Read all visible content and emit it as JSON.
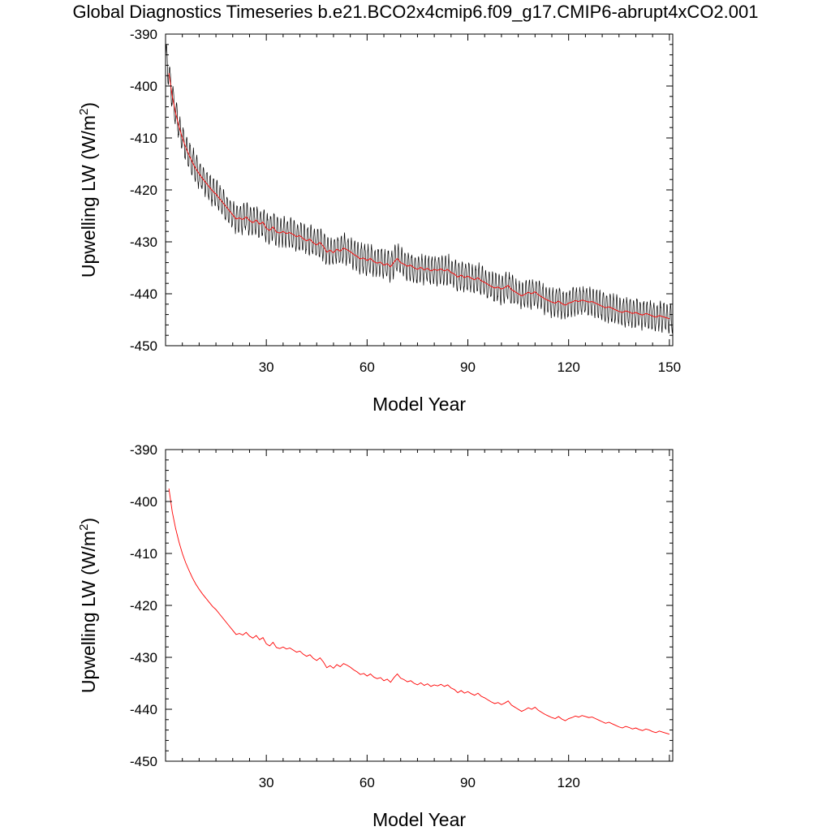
{
  "title": "Global Diagnostics Timeseries b.e21.BCO2x4cmip6.f09_g17.CMIP6-abrupt4xCO2.001",
  "colors": {
    "monthly": "#000000",
    "annual": "#ff0000",
    "axis": "#000000"
  },
  "chart_data": [
    {
      "type": "line",
      "xlabel": "Model Year",
      "ylabel_main": "Upwelling LW (W/m",
      "ylabel_sup": "2",
      "ylabel_close": ")",
      "xlim": [
        0,
        151
      ],
      "ylim": [
        -450,
        -390
      ],
      "xticks": [
        30,
        60,
        90,
        120,
        150
      ],
      "xtick_labels": [
        "30",
        "60",
        "90",
        "120",
        "150"
      ],
      "yticks": [
        -390,
        -400,
        -410,
        -420,
        -430,
        -440,
        -450
      ],
      "ytick_labels": [
        "-390",
        "-400",
        "-410",
        "-420",
        "-430",
        "-440",
        "-450"
      ],
      "series": [
        {
          "kind": "monthly",
          "x_start": 0.04,
          "x_end": 151,
          "count": 1812,
          "seasonal_amplitude": 2.6
        },
        {
          "kind": "annual"
        }
      ]
    },
    {
      "type": "line",
      "xlabel": "Model Year",
      "ylabel_main": "Upwelling LW (W/m",
      "ylabel_sup": "2",
      "ylabel_close": ")",
      "xlim": [
        0,
        151
      ],
      "ylim": [
        -450,
        -390
      ],
      "xticks": [
        30,
        60,
        90,
        120
      ],
      "xtick_labels": [
        "30",
        "60",
        "90",
        "120"
      ],
      "yticks": [
        -390,
        -400,
        -410,
        -420,
        -430,
        -440,
        -450
      ],
      "ytick_labels": [
        "-390",
        "-400",
        "-410",
        "-420",
        "-430",
        "-440",
        "-450"
      ],
      "series": [
        {
          "kind": "annual"
        }
      ]
    }
  ],
  "annual_series": {
    "x": [
      1,
      2,
      3,
      4,
      5,
      6,
      7,
      8,
      9,
      10,
      11,
      12,
      13,
      14,
      15,
      16,
      17,
      18,
      19,
      20,
      21,
      22,
      23,
      24,
      25,
      26,
      27,
      28,
      29,
      30,
      31,
      32,
      33,
      34,
      35,
      36,
      37,
      38,
      39,
      40,
      41,
      42,
      43,
      44,
      45,
      46,
      47,
      48,
      49,
      50,
      51,
      52,
      53,
      54,
      55,
      56,
      57,
      58,
      59,
      60,
      61,
      62,
      63,
      64,
      65,
      66,
      67,
      68,
      69,
      70,
      71,
      72,
      73,
      74,
      75,
      76,
      77,
      78,
      79,
      80,
      81,
      82,
      83,
      84,
      85,
      86,
      87,
      88,
      89,
      90,
      91,
      92,
      93,
      94,
      95,
      96,
      97,
      98,
      99,
      100,
      101,
      102,
      103,
      104,
      105,
      106,
      107,
      108,
      109,
      110,
      111,
      112,
      113,
      114,
      115,
      116,
      117,
      118,
      119,
      120,
      121,
      122,
      123,
      124,
      125,
      126,
      127,
      128,
      129,
      130,
      131,
      132,
      133,
      134,
      135,
      136,
      137,
      138,
      139,
      140,
      141,
      142,
      143,
      144,
      145,
      146,
      147,
      148,
      149,
      150
    ],
    "y": [
      -397.5,
      -402.0,
      -405.2,
      -407.8,
      -410.0,
      -411.8,
      -413.3,
      -414.7,
      -415.9,
      -416.9,
      -417.8,
      -418.6,
      -419.4,
      -420.2,
      -420.8,
      -421.6,
      -422.4,
      -423.2,
      -424.0,
      -424.8,
      -425.6,
      -425.4,
      -425.7,
      -425.2,
      -425.9,
      -426.3,
      -425.8,
      -426.6,
      -426.2,
      -427.4,
      -427.8,
      -427.1,
      -428.1,
      -428.3,
      -428.0,
      -428.4,
      -428.2,
      -428.6,
      -429.0,
      -428.8,
      -429.4,
      -429.8,
      -429.5,
      -430.2,
      -430.6,
      -430.1,
      -430.9,
      -432.0,
      -431.6,
      -432.1,
      -431.4,
      -431.8,
      -431.2,
      -431.5,
      -431.9,
      -432.4,
      -432.8,
      -433.3,
      -433.1,
      -433.6,
      -433.2,
      -433.8,
      -434.1,
      -433.9,
      -434.5,
      -434.2,
      -434.8,
      -433.9,
      -433.2,
      -434.0,
      -434.3,
      -434.7,
      -434.5,
      -435.0,
      -435.3,
      -434.9,
      -435.4,
      -435.1,
      -435.6,
      -435.3,
      -435.5,
      -435.2,
      -435.6,
      -435.3,
      -435.9,
      -436.2,
      -436.8,
      -436.4,
      -436.9,
      -436.6,
      -437.0,
      -437.3,
      -436.9,
      -437.5,
      -437.8,
      -438.2,
      -438.6,
      -438.9,
      -438.7,
      -439.1,
      -438.8,
      -438.4,
      -439.2,
      -439.6,
      -440.0,
      -440.4,
      -440.1,
      -439.7,
      -440.0,
      -439.6,
      -440.2,
      -440.6,
      -441.0,
      -441.3,
      -441.6,
      -441.8,
      -441.4,
      -441.9,
      -442.2,
      -441.8,
      -441.6,
      -441.3,
      -441.5,
      -441.2,
      -441.4,
      -441.6,
      -441.5,
      -441.8,
      -442.1,
      -442.4,
      -442.7,
      -442.5,
      -442.8,
      -443.1,
      -443.4,
      -443.6,
      -443.3,
      -443.5,
      -443.8,
      -443.6,
      -443.9,
      -444.1,
      -443.8,
      -444.0,
      -444.3,
      -444.5,
      -444.2,
      -444.4,
      -444.6,
      -444.8
    ]
  }
}
